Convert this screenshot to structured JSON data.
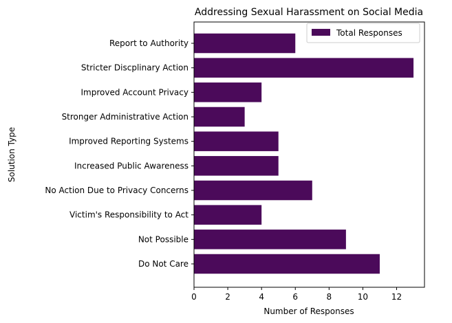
{
  "chart_data": {
    "type": "bar",
    "orientation": "horizontal",
    "title": "Addressing Sexual Harassment on Social Media",
    "xlabel": "Number of Responses",
    "ylabel": "Solution Type",
    "categories": [
      "Do Not Care",
      "Not Possible",
      "Victim's Responsibility to Act",
      "No Action Due to Privacy Concerns",
      "Increased Public Awareness",
      "Improved Reporting Systems",
      "Stronger Administrative Action",
      "Improved Account Privacy",
      "Stricter Discplinary Action",
      "Report to Authority"
    ],
    "series": [
      {
        "name": "Total Responses",
        "color": "#4b0a5a",
        "values": [
          11,
          9,
          4,
          7,
          5,
          5,
          3,
          4,
          13,
          6
        ]
      }
    ],
    "xlim": [
      0,
      13.65
    ],
    "xticks": [
      0,
      2,
      4,
      6,
      8,
      10,
      12
    ],
    "grid": false,
    "legend_position": "top-right"
  }
}
